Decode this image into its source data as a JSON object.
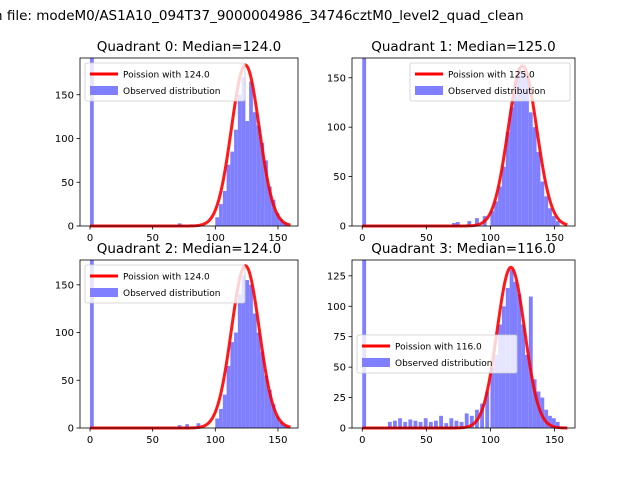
{
  "figure": {
    "suptitle": "n file: modeM0/AS1A10_094T37_9000004986_34746cztM0_level2_quad_clean",
    "colors": {
      "poisson": "#ff0000",
      "observed": "#7f7fff",
      "axes": "#000000"
    }
  },
  "chart_data": [
    {
      "type": "bar",
      "quadrant": 0,
      "title": "Quadrant 0: Median=124.0",
      "xlim": [
        -8,
        166
      ],
      "ylim": [
        0,
        192
      ],
      "xticks": [
        0,
        50,
        100,
        150
      ],
      "yticks": [
        0,
        50,
        100,
        150
      ],
      "legend_loc": "upper-left",
      "legend": [
        "Poission with 124.0",
        "Observed distribution"
      ],
      "median": 124,
      "poisson_peak": 184,
      "observed_bins": [
        [
          0,
          3,
          192
        ],
        [
          70,
          3,
          3
        ],
        [
          100,
          3,
          10
        ],
        [
          103,
          3,
          25
        ],
        [
          106,
          3,
          40
        ],
        [
          109,
          3,
          70
        ],
        [
          112,
          3,
          85
        ],
        [
          115,
          3,
          110
        ],
        [
          118,
          3,
          150
        ],
        [
          121,
          3,
          170
        ],
        [
          124,
          3,
          120
        ],
        [
          127,
          3,
          165
        ],
        [
          130,
          3,
          130
        ],
        [
          133,
          3,
          115
        ],
        [
          136,
          3,
          95
        ],
        [
          139,
          3,
          75
        ],
        [
          142,
          3,
          45
        ],
        [
          145,
          3,
          30
        ],
        [
          148,
          3,
          15
        ],
        [
          151,
          3,
          8
        ],
        [
          154,
          3,
          4
        ]
      ]
    },
    {
      "type": "bar",
      "quadrant": 1,
      "title": "Quadrant 1: Median=125.0",
      "xlim": [
        -8,
        166
      ],
      "ylim": [
        0,
        170
      ],
      "xticks": [
        0,
        50,
        100,
        150
      ],
      "yticks": [
        0,
        50,
        100,
        150
      ],
      "legend_loc": "upper-right",
      "legend": [
        "Poission with 125.0",
        "Observed distribution"
      ],
      "median": 125,
      "poisson_peak": 162,
      "observed_bins": [
        [
          0,
          3,
          170
        ],
        [
          70,
          3,
          3
        ],
        [
          73,
          3,
          4
        ],
        [
          82,
          3,
          5
        ],
        [
          88,
          3,
          8
        ],
        [
          94,
          3,
          10
        ],
        [
          100,
          3,
          15
        ],
        [
          103,
          3,
          25
        ],
        [
          106,
          3,
          40
        ],
        [
          109,
          3,
          60
        ],
        [
          112,
          3,
          95
        ],
        [
          115,
          3,
          120
        ],
        [
          118,
          3,
          145
        ],
        [
          121,
          3,
          160
        ],
        [
          124,
          3,
          155
        ],
        [
          127,
          3,
          150
        ],
        [
          130,
          3,
          115
        ],
        [
          133,
          3,
          100
        ],
        [
          136,
          3,
          75
        ],
        [
          139,
          3,
          45
        ],
        [
          142,
          3,
          30
        ],
        [
          145,
          3,
          18
        ],
        [
          148,
          3,
          10
        ],
        [
          151,
          3,
          5
        ]
      ]
    },
    {
      "type": "bar",
      "quadrant": 2,
      "title": "Quadrant 2: Median=124.0",
      "xlim": [
        -8,
        166
      ],
      "ylim": [
        0,
        176
      ],
      "xticks": [
        0,
        50,
        100,
        150
      ],
      "yticks": [
        0,
        50,
        100,
        150
      ],
      "legend_loc": "upper-left",
      "legend": [
        "Poission with 124.0",
        "Observed distribution"
      ],
      "median": 124,
      "poisson_peak": 170,
      "observed_bins": [
        [
          0,
          3,
          176
        ],
        [
          70,
          3,
          3
        ],
        [
          76,
          3,
          4
        ],
        [
          85,
          3,
          5
        ],
        [
          100,
          3,
          10
        ],
        [
          103,
          3,
          20
        ],
        [
          106,
          3,
          35
        ],
        [
          109,
          3,
          65
        ],
        [
          112,
          3,
          90
        ],
        [
          115,
          3,
          100
        ],
        [
          118,
          3,
          140
        ],
        [
          121,
          3,
          160
        ],
        [
          124,
          3,
          155
        ],
        [
          127,
          3,
          150
        ],
        [
          130,
          3,
          120
        ],
        [
          133,
          3,
          100
        ],
        [
          136,
          3,
          80
        ],
        [
          139,
          3,
          55
        ],
        [
          142,
          3,
          40
        ],
        [
          145,
          3,
          25
        ],
        [
          148,
          3,
          12
        ],
        [
          151,
          3,
          6
        ],
        [
          154,
          3,
          3
        ]
      ]
    },
    {
      "type": "bar",
      "quadrant": 3,
      "title": "Quadrant 3: Median=116.0",
      "xlim": [
        -8,
        166
      ],
      "ylim": [
        0,
        138
      ],
      "xticks": [
        0,
        50,
        100,
        150
      ],
      "yticks": [
        0,
        25,
        50,
        75,
        100,
        125
      ],
      "legend_loc": "center-left",
      "legend": [
        "Poission with 116.0",
        "Observed distribution"
      ],
      "median": 116,
      "poisson_peak": 132,
      "observed_bins": [
        [
          0,
          3,
          138
        ],
        [
          20,
          3,
          5
        ],
        [
          24,
          3,
          6
        ],
        [
          28,
          3,
          8
        ],
        [
          32,
          3,
          5
        ],
        [
          36,
          3,
          7
        ],
        [
          40,
          3,
          6
        ],
        [
          44,
          3,
          5
        ],
        [
          48,
          3,
          8
        ],
        [
          52,
          3,
          5
        ],
        [
          56,
          3,
          6
        ],
        [
          60,
          3,
          10
        ],
        [
          64,
          3,
          4
        ],
        [
          68,
          3,
          8
        ],
        [
          72,
          3,
          6
        ],
        [
          76,
          3,
          5
        ],
        [
          80,
          3,
          12
        ],
        [
          84,
          3,
          10
        ],
        [
          88,
          3,
          15
        ],
        [
          92,
          3,
          20
        ],
        [
          96,
          3,
          30
        ],
        [
          100,
          3,
          50
        ],
        [
          103,
          3,
          60
        ],
        [
          106,
          3,
          85
        ],
        [
          109,
          3,
          100
        ],
        [
          112,
          3,
          115
        ],
        [
          115,
          3,
          130
        ],
        [
          118,
          3,
          120
        ],
        [
          121,
          3,
          110
        ],
        [
          124,
          3,
          85
        ],
        [
          127,
          3,
          60
        ],
        [
          130,
          3,
          108
        ],
        [
          133,
          3,
          40
        ],
        [
          136,
          3,
          30
        ],
        [
          139,
          3,
          25
        ],
        [
          142,
          3,
          15
        ],
        [
          145,
          3,
          10
        ],
        [
          148,
          3,
          8
        ],
        [
          151,
          3,
          5
        ]
      ]
    }
  ]
}
